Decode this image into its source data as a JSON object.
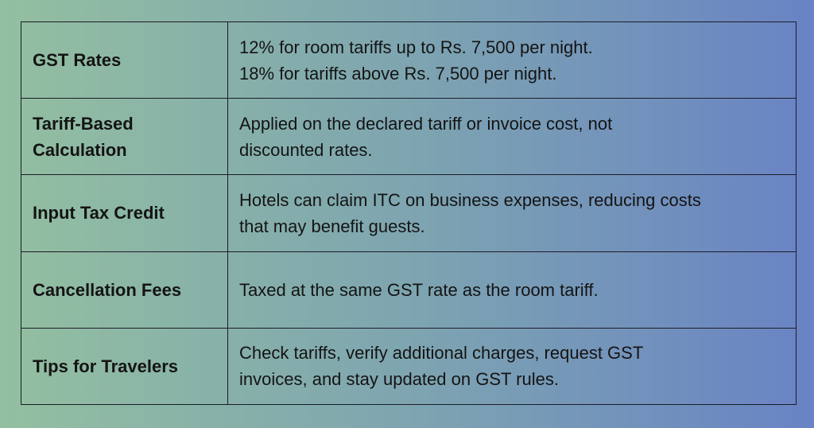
{
  "table": {
    "rows": [
      {
        "label": "GST Rates",
        "detail": [
          "12% for room tariffs up to Rs. 7,500 per night.",
          "18% for tariffs above Rs. 7,500 per night."
        ]
      },
      {
        "label": "Tariff-Based Calculation",
        "detail": [
          "Applied on the declared tariff or invoice cost, not",
          "discounted rates."
        ]
      },
      {
        "label": "Input Tax Credit",
        "detail": [
          "Hotels can claim ITC on business expenses, reducing costs",
          "that may benefit guests."
        ]
      },
      {
        "label": "Cancellation Fees",
        "detail": [
          "Taxed at the same GST rate as the room tariff."
        ]
      },
      {
        "label": "Tips for Travelers",
        "detail": [
          "Check tariffs, verify additional charges, request GST",
          "invoices, and stay updated on GST rules."
        ]
      }
    ]
  }
}
